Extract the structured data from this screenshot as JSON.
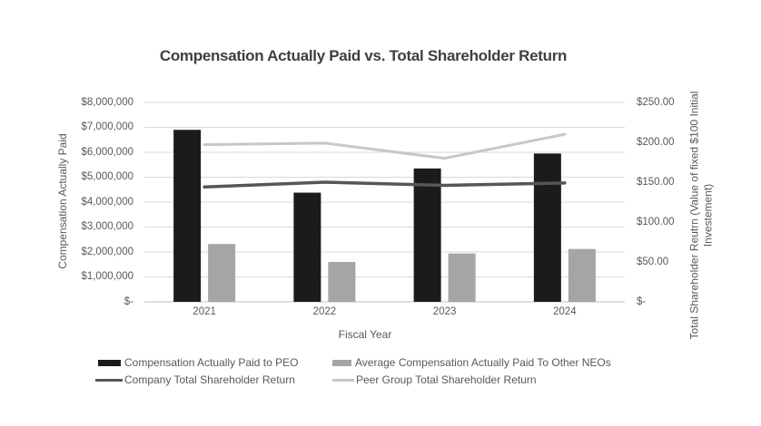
{
  "chart_data": {
    "type": "combo-bar-line",
    "title": "Compensation Actually Paid vs. Total Shareholder Return",
    "categories": [
      "2021",
      "2022",
      "2023",
      "2024"
    ],
    "bar_series": [
      {
        "name": "Compensation Actually Paid to PEO",
        "color": "#1b1b1b",
        "axis": "left",
        "values": [
          6900000,
          4380000,
          5350000,
          5950000
        ]
      },
      {
        "name": "Average Compensation Actually Paid To Other NEOs",
        "color": "#a5a5a5",
        "axis": "left",
        "values": [
          2320000,
          1600000,
          1940000,
          2120000
        ]
      }
    ],
    "line_series": [
      {
        "name": "Company Total Shareholder Return",
        "color": "#565656",
        "axis": "right",
        "values": [
          144,
          150,
          146,
          149
        ]
      },
      {
        "name": "Peer Group Total Shareholder Return",
        "color": "#c7c7c7",
        "axis": "right",
        "values": [
          197,
          199,
          180,
          210
        ]
      }
    ],
    "left_axis": {
      "title": "Compensation Actually Paid",
      "min": 0,
      "max": 8000000,
      "step": 1000000,
      "tick_labels": [
        "$-",
        "$1,000,000",
        "$2,000,000",
        "$3,000,000",
        "$4,000,000",
        "$5,000,000",
        "$6,000,000",
        "$7,000,000",
        "$8,000,000"
      ]
    },
    "right_axis": {
      "title": "Total Shareholder Reutrn (Value of fixed $100 Initial Investement)",
      "min": 0,
      "max": 250,
      "step": 50,
      "tick_labels": [
        "$-",
        "$50.00",
        "$100.00",
        "$150.00",
        "$200.00",
        "$250.00"
      ]
    },
    "x_axis": {
      "title": "Fiscal Year"
    },
    "legend_position": "bottom",
    "grid": true,
    "colors": {
      "background": "#ffffff",
      "gridline": "#d9d9d9",
      "axis_line": "#bfbfbf",
      "text": "#595959",
      "title_text": "#3f3f3f"
    }
  }
}
